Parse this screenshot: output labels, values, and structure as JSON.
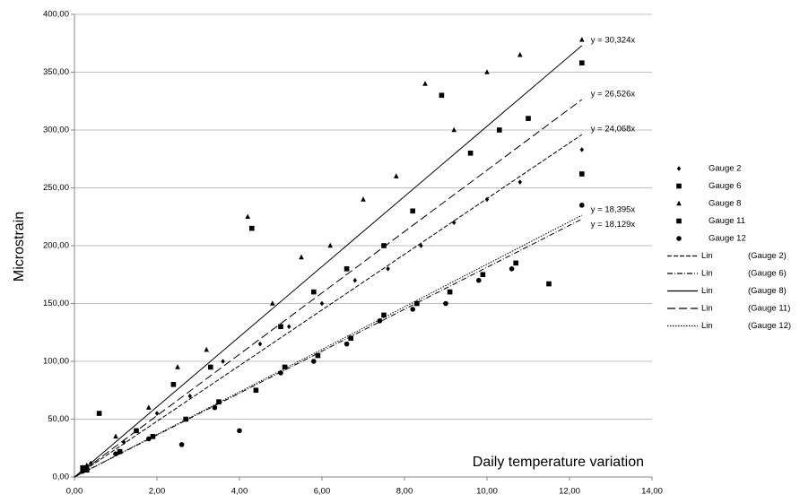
{
  "chart_data": {
    "type": "scatter",
    "x_label": "Daily temperature variation",
    "y_label": "Microstrain",
    "xlim": [
      0,
      14
    ],
    "ylim": [
      0,
      400
    ],
    "xticks": [
      {
        "value": 0,
        "label": "0,00"
      },
      {
        "value": 2,
        "label": "2,00"
      },
      {
        "value": 4,
        "label": "4,00"
      },
      {
        "value": 6,
        "label": "6,00"
      },
      {
        "value": 8,
        "label": "8,00"
      },
      {
        "value": 10,
        "label": "10,00"
      },
      {
        "value": 12,
        "label": "12,00"
      },
      {
        "value": 14,
        "label": "14,00"
      }
    ],
    "yticks": [
      {
        "value": 0,
        "label": "0,00"
      },
      {
        "value": 50,
        "label": "50,00"
      },
      {
        "value": 100,
        "label": "100,00"
      },
      {
        "value": 150,
        "label": "150,00"
      },
      {
        "value": 200,
        "label": "200,00"
      },
      {
        "value": 250,
        "label": "250,00"
      },
      {
        "value": 300,
        "label": "300,00"
      },
      {
        "value": 350,
        "label": "350,00"
      },
      {
        "value": 400,
        "label": "400,00"
      }
    ],
    "grid": true,
    "legend": "right",
    "series": [
      {
        "name": "Gauge 2",
        "marker": "diamond",
        "color": "#000000",
        "x": [
          0.4,
          1.2,
          2.0,
          2.8,
          3.6,
          4.5,
          5.2,
          6.0,
          6.8,
          7.6,
          8.4,
          9.2,
          10.0,
          10.8,
          12.3
        ],
        "y": [
          12,
          30,
          55,
          70,
          100,
          115,
          130,
          150,
          170,
          180,
          200,
          220,
          240,
          255,
          283
        ]
      },
      {
        "name": "Gauge 6",
        "marker": "square",
        "color": "#000000",
        "x": [
          0.3,
          1.1,
          1.9,
          2.7,
          3.5,
          4.4,
          5.1,
          5.9,
          6.7,
          7.5,
          8.3,
          9.1,
          9.9,
          10.7,
          11.5
        ],
        "y": [
          6,
          22,
          35,
          50,
          65,
          75,
          95,
          105,
          120,
          140,
          150,
          160,
          175,
          185,
          167
        ]
      },
      {
        "name": "Gauge 8",
        "marker": "triangle",
        "color": "#000000",
        "x": [
          0.3,
          1.0,
          1.8,
          2.5,
          3.2,
          4.2,
          4.8,
          5.5,
          6.2,
          7.0,
          7.8,
          8.5,
          9.2,
          10.0,
          10.8,
          12.3
        ],
        "y": [
          10,
          35,
          60,
          95,
          110,
          225,
          150,
          190,
          200,
          240,
          260,
          340,
          300,
          350,
          365,
          378
        ]
      },
      {
        "name": "Gauge 11",
        "marker": "square",
        "color": "#000000",
        "x": [
          0.2,
          0.6,
          1.5,
          2.4,
          3.3,
          4.3,
          5.0,
          5.8,
          6.6,
          7.5,
          8.2,
          8.9,
          9.6,
          10.3,
          11.0,
          12.3,
          12.3
        ],
        "y": [
          8,
          55,
          40,
          80,
          95,
          215,
          130,
          160,
          180,
          200,
          230,
          330,
          280,
          300,
          310,
          358,
          262
        ]
      },
      {
        "name": "Gauge 12",
        "marker": "circle",
        "color": "#000000",
        "x": [
          0.2,
          1.0,
          1.8,
          2.6,
          3.4,
          4.0,
          5.0,
          5.8,
          6.6,
          7.4,
          8.2,
          9.0,
          9.8,
          10.6,
          12.3
        ],
        "y": [
          5,
          20,
          33,
          28,
          60,
          40,
          90,
          100,
          115,
          135,
          145,
          150,
          170,
          180,
          235
        ]
      }
    ],
    "trendlines": [
      {
        "name": "Lin",
        "of": "(Gauge 2)",
        "dash": "5,2",
        "slope": 24.068,
        "label": "y = 24,068x",
        "x_end": 12.3
      },
      {
        "name": "Lin",
        "of": "(Gauge 6)",
        "dash": "6,2,1,2",
        "slope": 18.129,
        "label": "y = 18,129x",
        "x_end": 12.3
      },
      {
        "name": "Lin",
        "of": "(Gauge 8)",
        "dash": "none",
        "slope": 30.324,
        "label": "y = 30,324x",
        "x_end": 12.3
      },
      {
        "name": "Lin",
        "of": "(Gauge 11)",
        "dash": "9,4",
        "slope": 26.526,
        "label": "y = 26,526x",
        "x_end": 12.3
      },
      {
        "name": "Lin",
        "of": "(Gauge 12)",
        "dash": "1.5,1.5",
        "slope": 18.395,
        "label": "y = 18,395x",
        "x_end": 12.3
      }
    ]
  }
}
